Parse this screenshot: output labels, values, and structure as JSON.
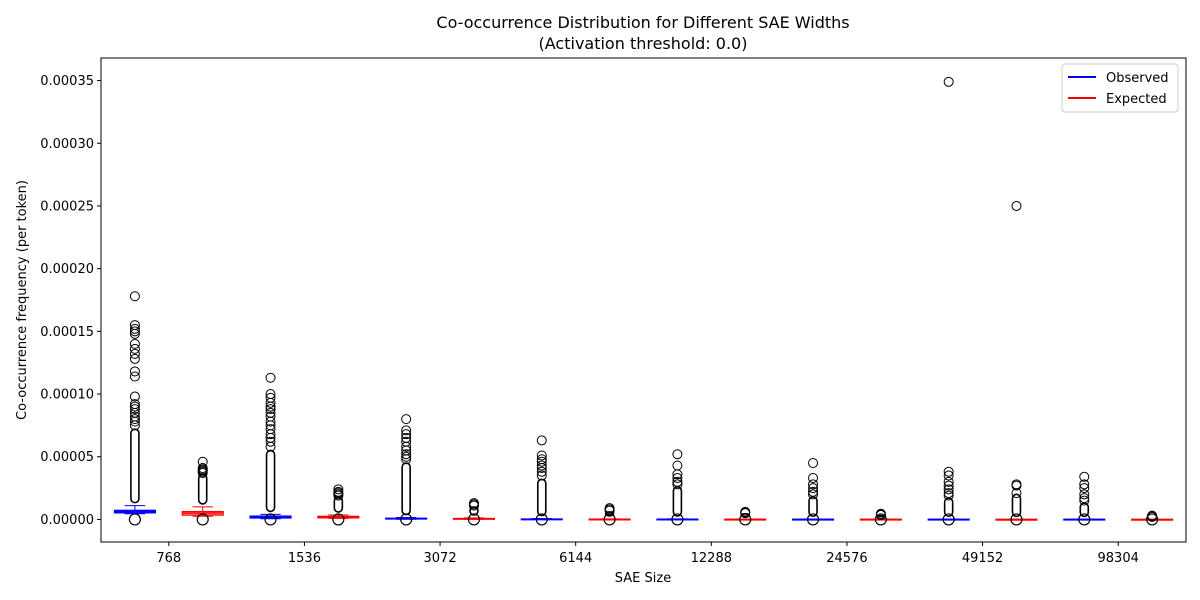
{
  "chart_data": {
    "type": "box",
    "title_line1": "Co-occurrence Distribution for Different SAE Widths",
    "title_line2": "(Activation threshold: 0.0)",
    "xlabel": "SAE Size",
    "ylabel": "Co-occurrence frequency (per token)",
    "ylim": [
      -1.8e-05,
      0.000368
    ],
    "yticks": [
      "0.00000",
      "0.00005",
      "0.00010",
      "0.00015",
      "0.00020",
      "0.00025",
      "0.00030",
      "0.00035"
    ],
    "categories": [
      "768",
      "1536",
      "3072",
      "6144",
      "12288",
      "24576",
      "49152",
      "98304"
    ],
    "legend": {
      "position": "top-right",
      "observed": "Observed",
      "expected": "Expected"
    },
    "colors": {
      "observed": "#0000ff",
      "expected": "#ff0000",
      "outlier": "#000000"
    },
    "series": [
      {
        "key": "observed",
        "boxes": [
          {
            "category": "768",
            "q1": 5.3e-06,
            "median": 6.2e-06,
            "q3": 7.2e-06,
            "whisker_low": 4.5e-06,
            "whisker_high": 1.1e-05,
            "outlier_max": 7.2e-05,
            "outliers": [
              7.5e-05,
              7.8e-05,
              8e-05,
              8.2e-05,
              8.5e-05,
              8.8e-05,
              9e-05,
              9.2e-05,
              9.8e-05,
              0.000114,
              0.000118,
              0.000128,
              0.000132,
              0.000136,
              0.00014,
              0.000148,
              0.00015,
              0.000152,
              0.000155,
              0.000178
            ]
          },
          {
            "category": "1536",
            "q1": 1.2e-06,
            "median": 1.8e-06,
            "q3": 2.6e-06,
            "whisker_low": 5e-07,
            "whisker_high": 4e-06,
            "outlier_max": 5.5e-05,
            "outliers": [
              5.8e-05,
              6.2e-05,
              6.5e-05,
              6.8e-05,
              7.2e-05,
              7.5e-05,
              7.8e-05,
              8.2e-05,
              8.5e-05,
              8.8e-05,
              9e-05,
              9.3e-05,
              9.7e-05,
              0.0001,
              0.000113
            ]
          },
          {
            "category": "3072",
            "q1": 4e-07,
            "median": 6e-07,
            "q3": 9e-07,
            "whisker_low": 1e-07,
            "whisker_high": 1.5e-06,
            "outlier_max": 4.5e-05,
            "outliers": [
              4.8e-05,
              5e-05,
              5.2e-05,
              5.5e-05,
              5.8e-05,
              6.2e-05,
              6.5e-05,
              6.8e-05,
              7.1e-05,
              8e-05
            ]
          },
          {
            "category": "6144",
            "q1": 1e-07,
            "median": 2e-07,
            "q3": 3e-07,
            "whisker_low": 0.0,
            "whisker_high": 7e-07,
            "outlier_max": 3.2e-05,
            "outliers": [
              3.5e-05,
              3.8e-05,
              4.1e-05,
              4.3e-05,
              4.6e-05,
              4.8e-05,
              5.1e-05,
              6.3e-05
            ]
          },
          {
            "category": "12288",
            "q1": 1e-07,
            "median": 1e-07,
            "q3": 2e-07,
            "whisker_low": 0.0,
            "whisker_high": 4e-07,
            "outlier_max": 2.6e-05,
            "outliers": [
              2.8e-05,
              3e-05,
              3.3e-05,
              3.6e-05,
              4.3e-05,
              5.2e-05
            ]
          },
          {
            "category": "24576",
            "q1": 0.0,
            "median": 1e-07,
            "q3": 1e-07,
            "whisker_low": 0.0,
            "whisker_high": 2e-07,
            "outlier_max": 1.8e-05,
            "outliers": [
              2e-05,
              2.2e-05,
              2.5e-05,
              2.8e-05,
              3.3e-05,
              4.5e-05
            ]
          },
          {
            "category": "49152",
            "q1": 0.0,
            "median": 0.0,
            "q3": 1e-07,
            "whisker_low": 0.0,
            "whisker_high": 2e-07,
            "outlier_max": 1.7e-05,
            "outliers": [
              1.9e-05,
              2.1e-05,
              2.4e-05,
              2.7e-05,
              3e-05,
              3.5e-05,
              3.8e-05,
              0.000349
            ]
          },
          {
            "category": "98304",
            "q1": 0.0,
            "median": 0.0,
            "q3": 1e-07,
            "whisker_low": 0.0,
            "whisker_high": 1e-07,
            "outlier_max": 1.3e-05,
            "outliers": [
              1.5e-05,
              1.7e-05,
              2e-05,
              2.5e-05,
              2.8e-05,
              3.4e-05
            ]
          }
        ]
      },
      {
        "key": "expected",
        "boxes": [
          {
            "category": "768",
            "q1": 3.5e-06,
            "median": 5e-06,
            "q3": 6.2e-06,
            "whisker_low": 2.5e-06,
            "whisker_high": 1e-05,
            "outlier_max": 3.6e-05,
            "outliers": [
              3.7e-05,
              3.8e-05,
              3.9e-05,
              4e-05,
              4.1e-05,
              4.6e-05
            ]
          },
          {
            "category": "1536",
            "q1": 1.3e-06,
            "median": 1.8e-06,
            "q3": 2.4e-06,
            "whisker_low": 8e-07,
            "whisker_high": 3.5e-06,
            "outlier_max": 1.8e-05,
            "outliers": [
              1.9e-05,
              2e-05,
              2.1e-05,
              2.2e-05,
              2.4e-05
            ]
          },
          {
            "category": "3072",
            "q1": 3e-07,
            "median": 5e-07,
            "q3": 7e-07,
            "whisker_low": 1e-07,
            "whisker_high": 1.2e-06,
            "outlier_max": 1e-05,
            "outliers": [
              1.1e-05,
              1.2e-05,
              1.3e-05
            ]
          },
          {
            "category": "6144",
            "q1": 1e-07,
            "median": 1e-07,
            "q3": 2e-07,
            "whisker_low": 0.0,
            "whisker_high": 4e-07,
            "outlier_max": 6e-06,
            "outliers": [
              7e-06,
              8e-06,
              9e-06
            ]
          },
          {
            "category": "12288",
            "q1": 0.0,
            "median": 1e-07,
            "q3": 1e-07,
            "whisker_low": 0.0,
            "whisker_high": 2e-07,
            "outlier_max": 4.5e-06,
            "outliers": [
              5e-06,
              5.5e-06,
              6e-06
            ]
          },
          {
            "category": "24576",
            "q1": 0.0,
            "median": 0.0,
            "q3": 1e-07,
            "whisker_low": 0.0,
            "whisker_high": 1e-07,
            "outlier_max": 3e-06,
            "outliers": [
              3.5e-06,
              4e-06,
              4.5e-06
            ]
          },
          {
            "category": "49152",
            "q1": 0.0,
            "median": 0.0,
            "q3": 0.0,
            "whisker_low": 0.0,
            "whisker_high": 1e-07,
            "outlier_max": 2e-05,
            "outliers": [
              2.1e-05,
              2.7e-05,
              2.8e-05,
              0.00025
            ]
          },
          {
            "category": "98304",
            "q1": 0.0,
            "median": 0.0,
            "q3": 0.0,
            "whisker_low": 0.0,
            "whisker_high": 0.0,
            "outlier_max": 1.8e-06,
            "outliers": [
              2e-06,
              2.5e-06,
              3e-06
            ]
          }
        ]
      }
    ]
  }
}
